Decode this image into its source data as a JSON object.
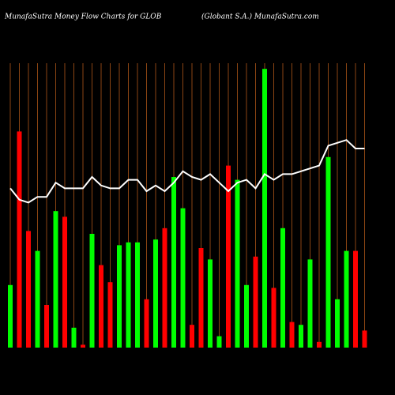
{
  "chart_data": {
    "type": "bar",
    "title": "MunafaSutra  Money Flow  Charts for GLOB",
    "subtitle": "(Globant S.A.) MunafaSutra.com",
    "categories": [
      null,
      null,
      null,
      null,
      null,
      null,
      null,
      null,
      null,
      null,
      null,
      null,
      null,
      null,
      null,
      null,
      null,
      null,
      null,
      null,
      null,
      null,
      null,
      null,
      null,
      null,
      null,
      null,
      null,
      null,
      null,
      null,
      null,
      null,
      null,
      null,
      null,
      null,
      null,
      null
    ],
    "values": [
      22,
      76,
      41,
      34,
      15,
      48,
      46,
      7,
      1,
      40,
      29,
      23,
      36,
      37,
      37,
      17,
      38,
      42,
      60,
      49,
      8,
      35,
      31,
      4,
      64,
      59,
      22,
      32,
      98,
      21,
      42,
      9,
      8,
      31,
      2,
      67,
      17,
      34,
      34,
      6
    ],
    "colors": [
      "#00ff00",
      "#ff0000",
      "#ff0000",
      "#00ff00",
      "#ff0000",
      "#00ff00",
      "#ff0000",
      "#00ff00",
      "#ff0000",
      "#00ff00",
      "#ff0000",
      "#ff0000",
      "#00ff00",
      "#00ff00",
      "#00ff00",
      "#ff0000",
      "#00ff00",
      "#ff0000",
      "#00ff00",
      "#00ff00",
      "#ff0000",
      "#ff0000",
      "#00ff00",
      "#00ff00",
      "#ff0000",
      "#00ff00",
      "#00ff00",
      "#ff0000",
      "#00ff00",
      "#ff0000",
      "#00ff00",
      "#ff0000",
      "#00ff00",
      "#00ff00",
      "#ff0000",
      "#00ff00",
      "#00ff00",
      "#00ff00",
      "#ff0000",
      "#ff0000"
    ],
    "line_values": [
      56,
      52,
      51,
      53,
      53,
      58,
      56,
      56,
      56,
      60,
      57,
      56,
      56,
      59,
      59,
      55,
      57,
      55,
      58,
      62,
      60,
      59,
      61,
      58,
      55,
      58,
      59,
      56,
      61,
      59,
      61,
      61,
      62,
      63,
      64,
      71,
      72,
      73,
      70,
      70
    ],
    "line_color": "#ffffff",
    "grid_color": "#8b4513",
    "ylim": [
      0,
      100
    ],
    "grid": true
  }
}
